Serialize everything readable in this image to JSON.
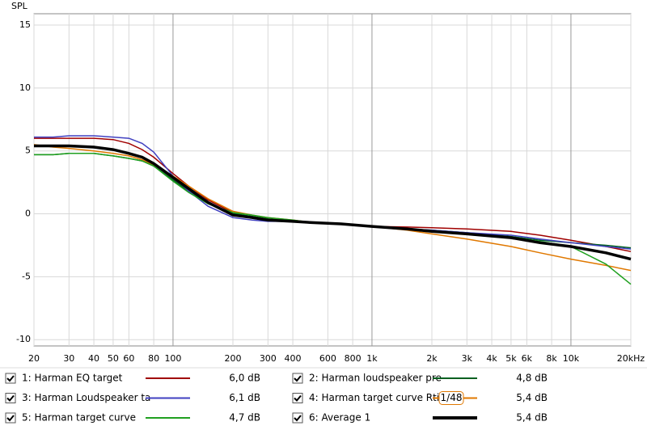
{
  "chart_data": {
    "type": "line",
    "y_label": "SPL",
    "log_x": true,
    "grid": true,
    "x": [
      20,
      25,
      30,
      40,
      50,
      60,
      70,
      80,
      100,
      120,
      150,
      200,
      250,
      300,
      400,
      500,
      700,
      1000,
      1500,
      2000,
      3000,
      5000,
      7000,
      10000,
      15000,
      20000
    ],
    "xlim": [
      20,
      20000
    ],
    "xticks": [
      20,
      30,
      40,
      50,
      60,
      80,
      100,
      200,
      300,
      400,
      600,
      800,
      {
        "value": 1000,
        "label": "1k"
      },
      {
        "value": 2000,
        "label": "2k"
      },
      {
        "value": 3000,
        "label": "3k"
      },
      {
        "value": 4000,
        "label": "4k"
      },
      {
        "value": 5000,
        "label": "5k"
      },
      {
        "value": 6000,
        "label": "6k"
      },
      {
        "value": 8000,
        "label": "8k"
      },
      {
        "value": 10000,
        "label": "10k"
      },
      {
        "value": 20000,
        "label": "20kHz"
      }
    ],
    "ylim": [
      -10.5,
      15.9
    ],
    "yticks": [
      15,
      10,
      5,
      0,
      -5,
      -10
    ],
    "series": [
      {
        "name": "1: Harman EQ target",
        "color": "#a00000",
        "level_label": "6,0 dB",
        "values": [
          6.0,
          6.0,
          6.0,
          6.0,
          5.9,
          5.6,
          5.1,
          4.5,
          3.2,
          2.2,
          1.1,
          0.1,
          -0.3,
          -0.5,
          -0.6,
          -0.7,
          -0.8,
          -1.0,
          -1.05,
          -1.1,
          -1.2,
          -1.4,
          -1.7,
          -2.1,
          -2.6,
          -3.0
        ]
      },
      {
        "name": "2: Harman loudspeaker pre",
        "color": "#006020",
        "level_label": "4,8 dB",
        "values": [
          4.7,
          4.7,
          4.8,
          4.8,
          4.6,
          4.4,
          4.2,
          3.8,
          2.7,
          1.8,
          0.8,
          0.0,
          -0.2,
          -0.4,
          -0.6,
          -0.7,
          -0.8,
          -1.0,
          -1.2,
          -1.3,
          -1.5,
          -1.8,
          -2.1,
          -2.3,
          -2.5,
          -2.7
        ]
      },
      {
        "name": "3: Harman Loudspeaker ta",
        "color": "#4040c0",
        "level_label": "6,1 dB",
        "values": [
          6.1,
          6.1,
          6.2,
          6.2,
          6.1,
          6.0,
          5.6,
          4.9,
          3.0,
          1.8,
          0.6,
          -0.3,
          -0.5,
          -0.6,
          -0.6,
          -0.7,
          -0.8,
          -1.0,
          -1.2,
          -1.3,
          -1.5,
          -1.7,
          -2.0,
          -2.3,
          -2.6,
          -2.8
        ]
      },
      {
        "name": "4: Harman target curve Rti",
        "color": "#e07800",
        "level_label": "5,4 dB",
        "smoothing": "1/48",
        "values": [
          5.5,
          5.3,
          5.2,
          5.0,
          4.8,
          4.6,
          4.3,
          3.9,
          3.0,
          2.2,
          1.2,
          0.2,
          -0.1,
          -0.3,
          -0.5,
          -0.7,
          -0.8,
          -1.0,
          -1.3,
          -1.6,
          -2.0,
          -2.6,
          -3.1,
          -3.6,
          -4.1,
          -4.5
        ]
      },
      {
        "name": "5: Harman target curve",
        "color": "#20a020",
        "level_label": "4,7 dB",
        "values": [
          4.7,
          4.7,
          4.8,
          4.8,
          4.6,
          4.4,
          4.2,
          3.8,
          2.6,
          1.7,
          0.8,
          0.1,
          -0.1,
          -0.3,
          -0.5,
          -0.7,
          -0.8,
          -1.0,
          -1.2,
          -1.4,
          -1.6,
          -1.9,
          -2.2,
          -2.6,
          -4.0,
          -5.6
        ]
      },
      {
        "name": "6: Average 1",
        "color": "#000000",
        "level_label": "5,4 dB",
        "values": [
          5.4,
          5.4,
          5.4,
          5.3,
          5.1,
          4.8,
          4.5,
          4.0,
          2.9,
          2.0,
          0.9,
          -0.1,
          -0.3,
          -0.5,
          -0.6,
          -0.7,
          -0.8,
          -1.0,
          -1.2,
          -1.4,
          -1.6,
          -1.9,
          -2.3,
          -2.6,
          -3.1,
          -3.6
        ]
      }
    ]
  }
}
